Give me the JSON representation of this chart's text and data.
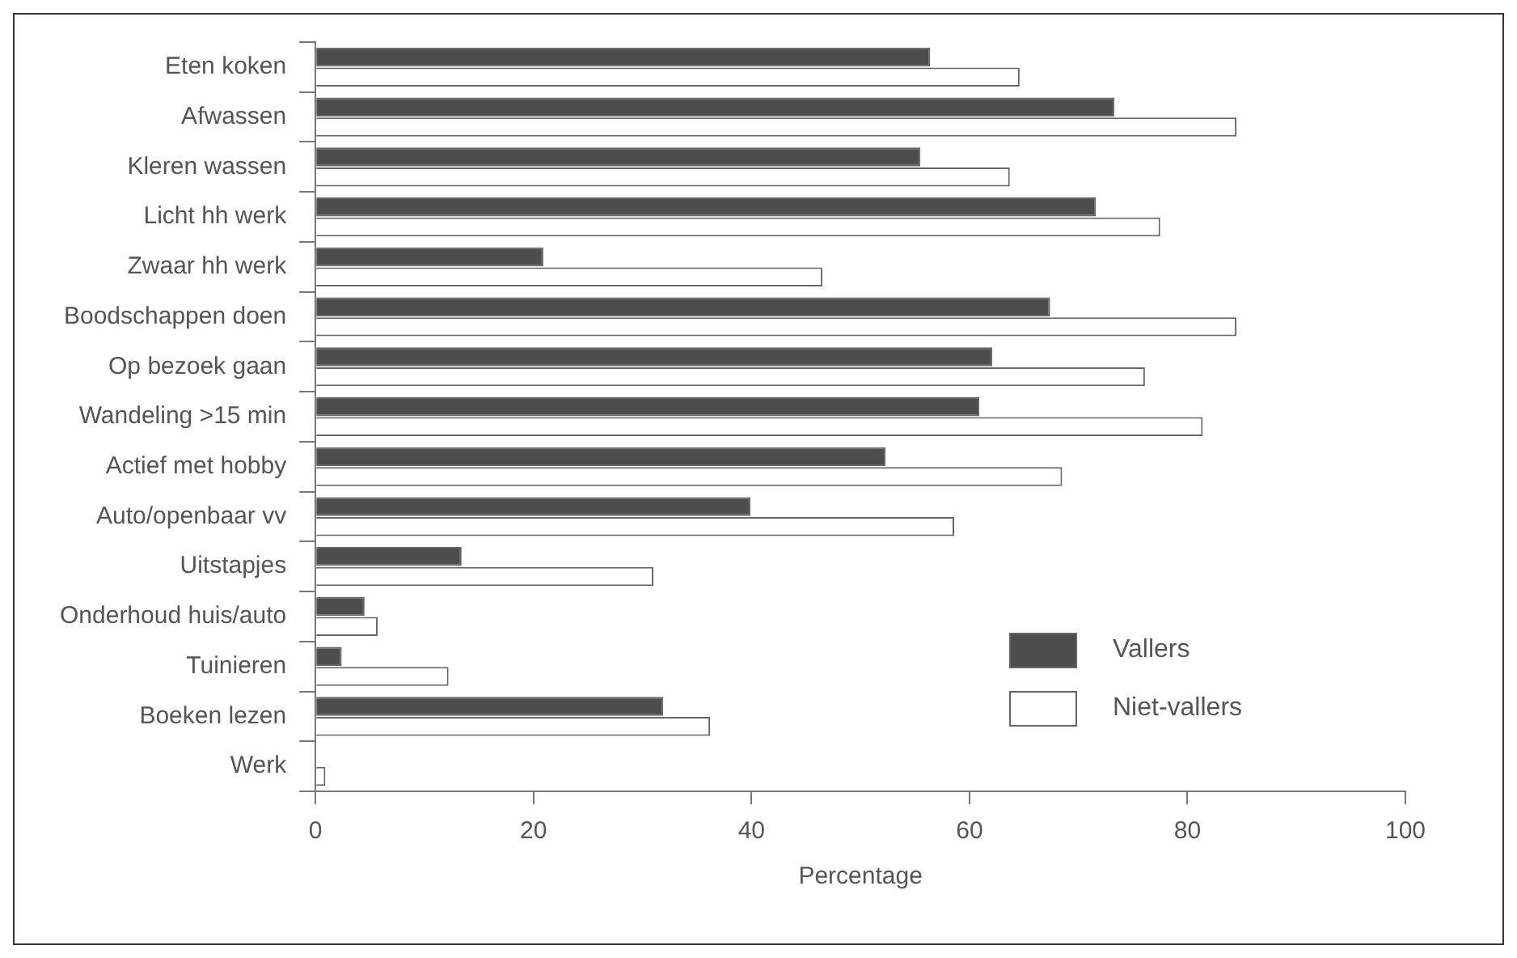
{
  "chart_data": {
    "type": "bar",
    "orientation": "horizontal",
    "xlabel": "Percentage",
    "categories": [
      "Eten koken",
      "Afwassen",
      "Kleren wassen",
      "Licht hh werk",
      "Zwaar hh werk",
      "Boodschappen doen",
      "Op bezoek gaan",
      "Wandeling >15 min",
      "Actief met hobby",
      "Auto/openbaar vv",
      "Uitstapjes",
      "Onderhoud huis/auto",
      "Tuinieren",
      "Boeken lezen",
      "Werk"
    ],
    "series": [
      {
        "name": "Vallers",
        "color": "#4d4d4d",
        "values": [
          56.4,
          73.3,
          55.5,
          71.6,
          20.9,
          67.4,
          62.1,
          60.9,
          52.3,
          39.9,
          13.4,
          4.5,
          2.4,
          31.9,
          0
        ]
      },
      {
        "name": "Niet-vallers",
        "color": "#ffffff",
        "values": [
          64.6,
          84.5,
          63.7,
          77.5,
          46.5,
          84.5,
          76.1,
          81.4,
          68.5,
          58.6,
          31.0,
          5.7,
          12.2,
          36.2,
          0.9
        ]
      }
    ],
    "xlim": [
      0,
      100
    ],
    "xticks": [
      0,
      20,
      40,
      60,
      80,
      100
    ],
    "grid": false,
    "legend": "bottom right"
  }
}
